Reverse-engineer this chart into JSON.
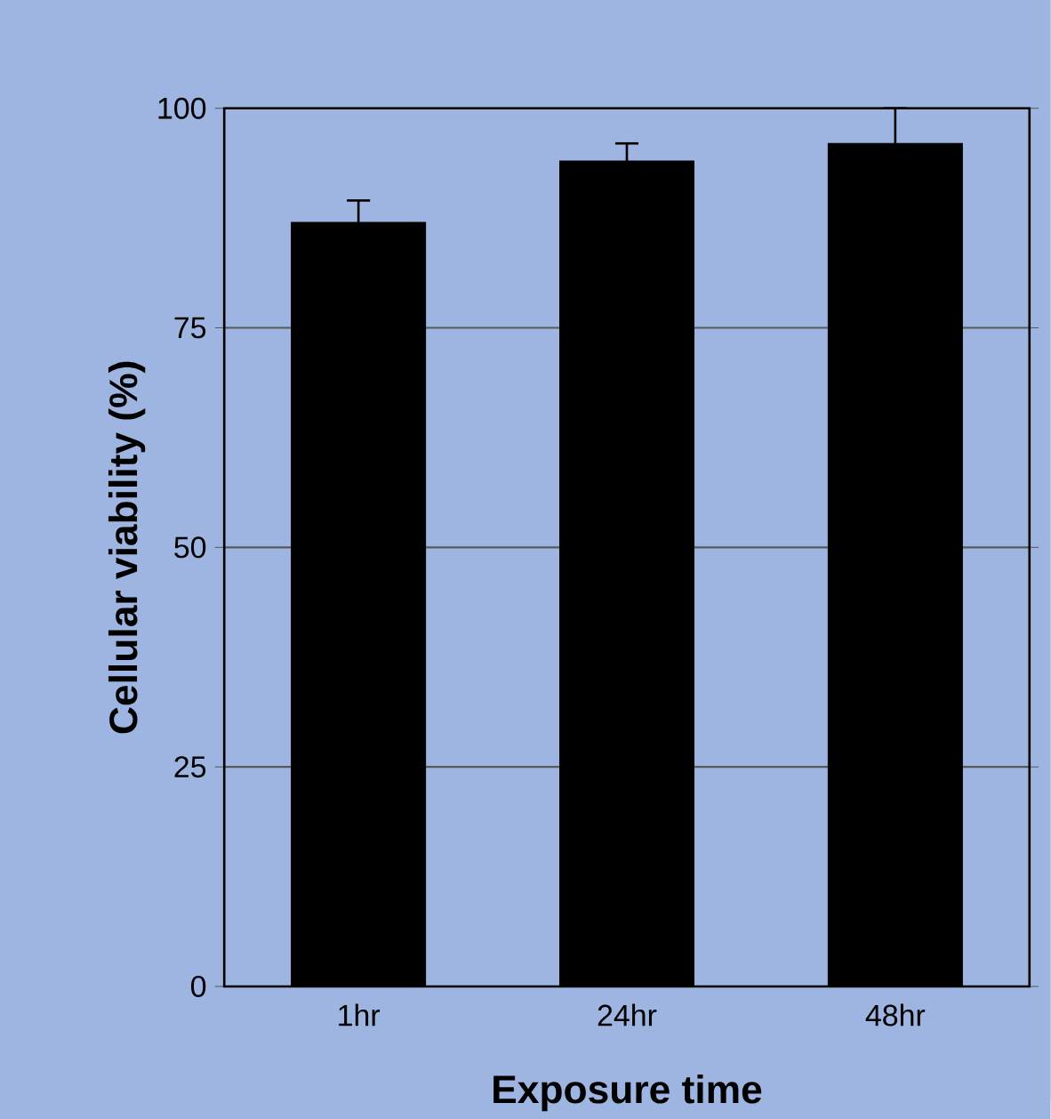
{
  "chart_data": {
    "type": "bar",
    "xlabel": "Exposure time",
    "ylabel": "Cellular viability (%)",
    "categories": [
      "1hr",
      "24hr",
      "48hr"
    ],
    "values": [
      87,
      94,
      96
    ],
    "errors": [
      2.5,
      2,
      4
    ],
    "color": "#000000",
    "ylim": [
      0,
      100
    ],
    "yticks": [
      0,
      25,
      50,
      75,
      100
    ],
    "grid": "y"
  }
}
